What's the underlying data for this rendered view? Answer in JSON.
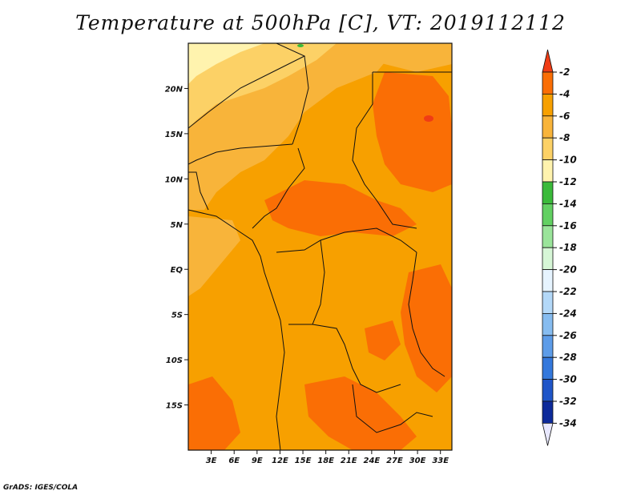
{
  "title": "Temperature at 500hPa [C], VT: 2019112112",
  "credit": "GrADS: IGES/COLA",
  "lat_ticks": [
    {
      "label": "20N",
      "value": 20
    },
    {
      "label": "15N",
      "value": 15
    },
    {
      "label": "10N",
      "value": 10
    },
    {
      "label": "5N",
      "value": 5
    },
    {
      "label": "EQ",
      "value": 0
    },
    {
      "label": "5S",
      "value": -5
    },
    {
      "label": "10S",
      "value": -10
    },
    {
      "label": "15S",
      "value": -15
    }
  ],
  "lon_ticks": [
    {
      "label": "3E",
      "value": 3
    },
    {
      "label": "6E",
      "value": 6
    },
    {
      "label": "9E",
      "value": 9
    },
    {
      "label": "12E",
      "value": 12
    },
    {
      "label": "15E",
      "value": 15
    },
    {
      "label": "18E",
      "value": 18
    },
    {
      "label": "21E",
      "value": 21
    },
    {
      "label": "24E",
      "value": 24
    },
    {
      "label": "27E",
      "value": 27
    },
    {
      "label": "30E",
      "value": 30
    },
    {
      "label": "33E",
      "value": 33
    }
  ],
  "map_extent": {
    "lon_min": 0,
    "lon_max": 34.5,
    "lat_min": -20,
    "lat_max": 25
  },
  "colorbar": {
    "labels": [
      "-2",
      "-4",
      "-6",
      "-8",
      "-10",
      "-12",
      "-14",
      "-16",
      "-18",
      "-20",
      "-22",
      "-24",
      "-26",
      "-28",
      "-30",
      "-32",
      "-34"
    ],
    "colors": [
      "#f03c15",
      "#fa6e05",
      "#f7a000",
      "#f8b43a",
      "#fcd166",
      "#fff3ae",
      "#3aba3a",
      "#62d062",
      "#9ae49a",
      "#d6f6d6",
      "#e6f4ff",
      "#b3d8f8",
      "#86bcf0",
      "#5d9ce8",
      "#3478dc",
      "#1f55c8",
      "#0d2a9a",
      "#0a1a6e",
      "#e8e8ff"
    ]
  },
  "temperature_zones": [
    {
      "band": "-8 to -10",
      "color": "#fcd166"
    },
    {
      "band": "-6 to -8",
      "color": "#f8b43a"
    },
    {
      "band": "-4 to -6",
      "color": "#f7a000"
    },
    {
      "band": "-2 to -4",
      "color": "#fa6e05"
    }
  ]
}
